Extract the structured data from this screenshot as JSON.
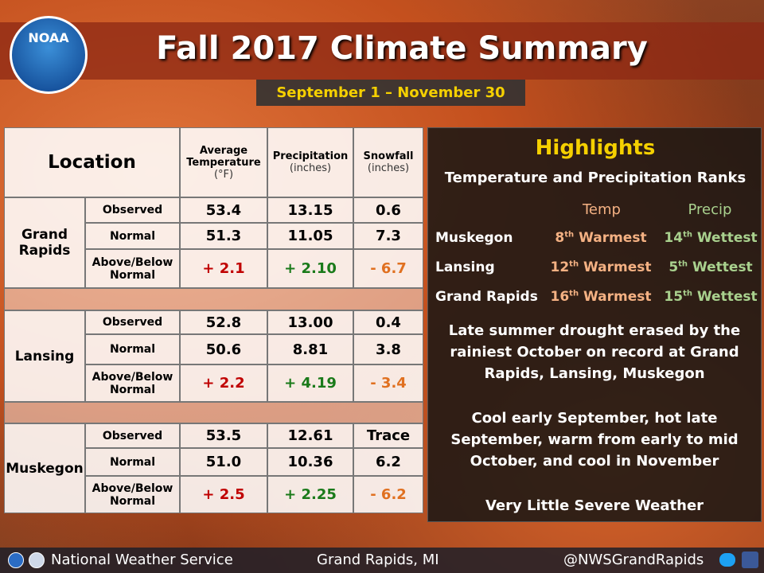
{
  "header": {
    "logo": "NOAA",
    "title": "Fall 2017 Climate Summary",
    "subtitle": "September 1 – November 30"
  },
  "table": {
    "columns": [
      {
        "title": "Location"
      },
      {
        "title": "Average Temperature",
        "unit": "(°F)"
      },
      {
        "title": "Precipitation",
        "unit": "(inches)"
      },
      {
        "title": "Snowfall",
        "unit": "(inches)"
      }
    ],
    "groups": [
      {
        "location": "Grand Rapids",
        "rows": [
          {
            "label": "Observed",
            "values": [
              "53.4",
              "13.15",
              "0.6"
            ]
          },
          {
            "label": "Normal",
            "values": [
              "51.3",
              "11.05",
              "7.3"
            ]
          },
          {
            "label": "Above/Below Normal",
            "values": [
              "+ 2.1",
              "+ 2.10",
              "- 6.7"
            ]
          }
        ]
      },
      {
        "location": "Lansing",
        "rows": [
          {
            "label": "Observed",
            "values": [
              "52.8",
              "13.00",
              "0.4"
            ]
          },
          {
            "label": "Normal",
            "values": [
              "50.6",
              "8.81",
              "3.8"
            ]
          },
          {
            "label": "Above/Below Normal",
            "values": [
              "+ 2.2",
              "+ 4.19",
              "- 3.4"
            ]
          }
        ]
      },
      {
        "location": "Muskegon",
        "rows": [
          {
            "label": "Observed",
            "values": [
              "53.5",
              "12.61",
              "Trace"
            ]
          },
          {
            "label": "Normal",
            "values": [
              "51.0",
              "10.36",
              "6.2"
            ]
          },
          {
            "label": "Above/Below Normal",
            "values": [
              "+ 2.5",
              "+ 2.25",
              "- 6.2"
            ]
          }
        ]
      }
    ]
  },
  "highlights": {
    "title": "Highlights",
    "subtitle": "Temperature and Precipitation Ranks",
    "columns": [
      "Temp",
      "Precip"
    ],
    "rows": [
      {
        "location": "Muskegon",
        "temp": {
          "rank": "8",
          "suffix": "th",
          "label": "Warmest"
        },
        "precip": {
          "rank": "14",
          "suffix": "th",
          "label": "Wettest"
        }
      },
      {
        "location": "Lansing",
        "temp": {
          "rank": "12",
          "suffix": "th",
          "label": "Warmest"
        },
        "precip": {
          "rank": "5",
          "suffix": "th",
          "label": "Wettest"
        }
      },
      {
        "location": "Grand Rapids",
        "temp": {
          "rank": "16",
          "suffix": "th",
          "label": "Warmest"
        },
        "precip": {
          "rank": "15",
          "suffix": "th",
          "label": "Wettest"
        }
      }
    ],
    "paragraphs": [
      "Late summer drought erased by the rainiest October on record at Grand Rapids, Lansing, Muskegon",
      "Cool early September, hot late September, warm from early to mid October, and cool in November",
      "Very Little Severe Weather"
    ]
  },
  "footer": {
    "agency": "National Weather Service",
    "office": "Grand Rapids, MI",
    "handle": "@NWSGrandRapids"
  }
}
